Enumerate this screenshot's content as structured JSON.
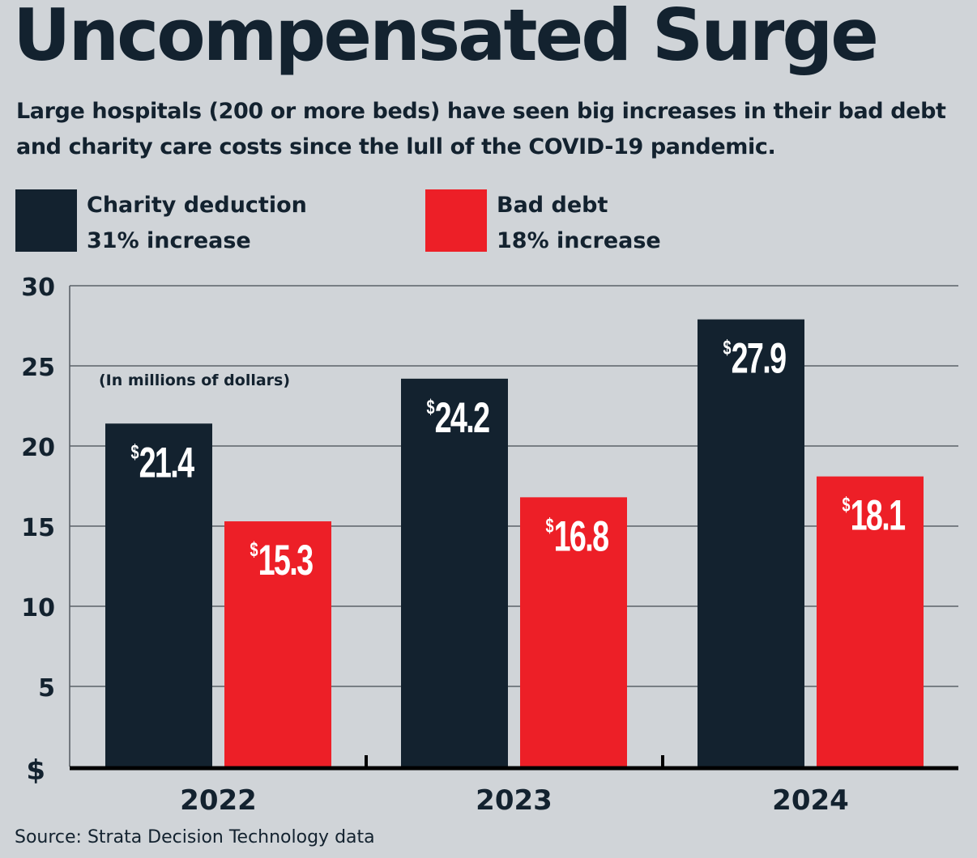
{
  "header": {
    "title": "Uncompensated Surge",
    "subtitle": "Large hospitals (200 or more beds) have seen big increases in their bad debt and charity care costs since the lull of the COVID-19 pandemic."
  },
  "legend": [
    {
      "name": "Charity deduction",
      "note": "31% increase",
      "color": "#13222f"
    },
    {
      "name": "Bad debt",
      "note": "18% increase",
      "color": "#ed1f27"
    }
  ],
  "footer": {
    "source": "Source: Strata Decision Technology data"
  },
  "chart_data": {
    "type": "bar",
    "title": "Uncompensated Surge",
    "subtitle": "Large hospitals (200 or more beds) have seen big increases in their bad debt and charity care costs since the lull of the COVID-19 pandemic.",
    "annotation": "(In millions of dollars)",
    "categories": [
      "2022",
      "2023",
      "2024"
    ],
    "series": [
      {
        "name": "Charity deduction",
        "values": [
          21.4,
          24.2,
          27.9
        ],
        "labels": [
          "21.4",
          "24.2",
          "27.9"
        ],
        "color": "#13222f",
        "change": "31% increase"
      },
      {
        "name": "Bad debt",
        "values": [
          15.3,
          16.8,
          18.1
        ],
        "labels": [
          "15.3",
          "16.8",
          "18.1"
        ],
        "color": "#ed1f27",
        "change": "18% increase"
      }
    ],
    "value_prefix": "$",
    "xlabel": "",
    "ylabel": "",
    "ylim": [
      0,
      30
    ],
    "yticks": [
      0,
      5,
      10,
      15,
      20,
      25,
      30
    ],
    "ytick_labels": [
      "$",
      "5",
      "10",
      "15",
      "20",
      "25",
      "30"
    ],
    "grid": true,
    "legend_position": "top-left",
    "source": "Source: Strata Decision Technology data"
  }
}
